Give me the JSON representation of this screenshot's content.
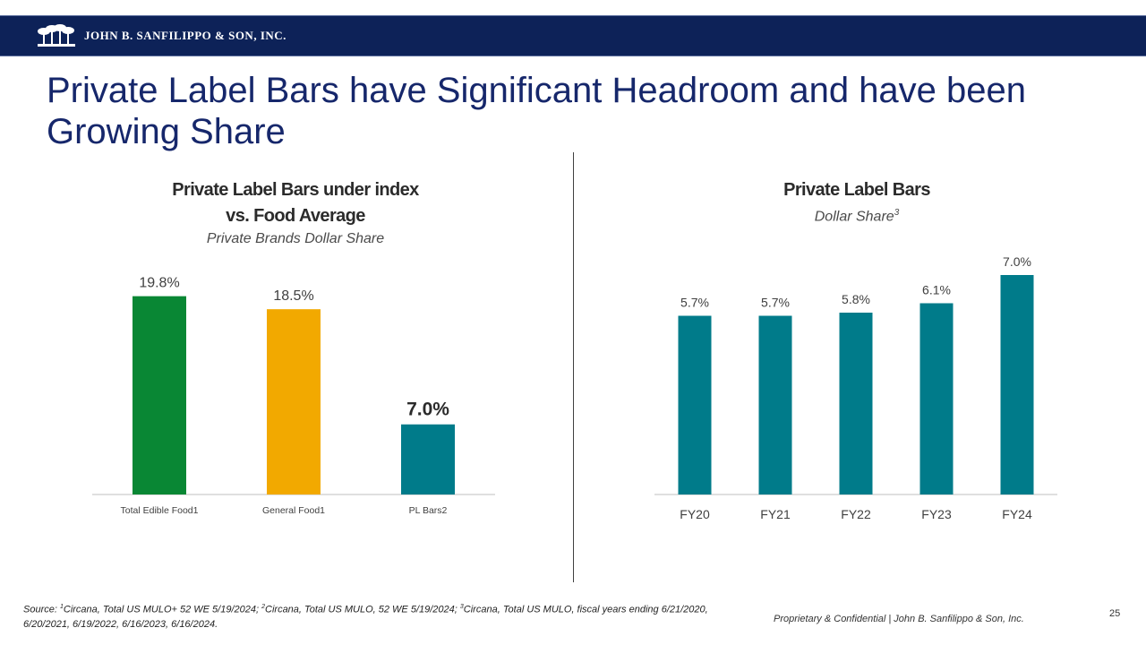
{
  "header": {
    "company": "JOHN B. SANFILIPPO & SON, INC.",
    "logo_icon": "palm-trees-logo-icon"
  },
  "title": "Private Label Bars have Significant Headroom and have been Growing Share",
  "left_chart": {
    "title_line1": "Private Label Bars under index",
    "title_line2": "vs. Food Average",
    "subtitle": "Private Brands Dollar Share"
  },
  "right_chart": {
    "title": "Private Label Bars",
    "subtitle": "Dollar Share",
    "subtitle_note": "3"
  },
  "chart_data": [
    {
      "type": "bar",
      "title": "Private Label Bars under index vs. Food Average",
      "subtitle": "Private Brands Dollar Share",
      "categories": [
        "Total Edible Food1",
        "General Food1",
        "PL Bars2"
      ],
      "values": [
        19.8,
        18.5,
        7.0
      ],
      "labels": [
        "19.8%",
        "18.5%",
        "7.0%"
      ],
      "highlight_index": 2,
      "colors": [
        "#098734",
        "#f2a900",
        "#007b8a"
      ],
      "ylim": [
        0,
        20
      ],
      "xlabel": "",
      "ylabel": "",
      "grid": false,
      "legend": false
    },
    {
      "type": "bar",
      "title": "Private Label Bars",
      "subtitle": "Dollar Share3",
      "categories": [
        "FY20",
        "FY21",
        "FY22",
        "FY23",
        "FY24"
      ],
      "values": [
        5.7,
        5.7,
        5.8,
        6.1,
        7.0
      ],
      "labels": [
        "5.7%",
        "5.7%",
        "5.8%",
        "6.1%",
        "7.0%"
      ],
      "colors": [
        "#007b8a",
        "#007b8a",
        "#007b8a",
        "#007b8a",
        "#007b8a"
      ],
      "ylim": [
        0,
        7.0
      ],
      "xlabel": "",
      "ylabel": "",
      "grid": false,
      "legend": false
    }
  ],
  "footer": {
    "source_prefix": "Source: ",
    "n1": "1",
    "s1": "Circana, Total US MULO+ 52 WE 5/19/2024; ",
    "n2": "2",
    "s2": "Circana, Total US MULO, 52 WE 5/19/2024; ",
    "n3": "3",
    "s3": "Circana, Total US MULO, fiscal years ending 6/21/2020, 6/20/2021, 6/19/2022, 6/16/2023, 6/16/2024.",
    "confidential": "Proprietary & Confidential | John B. Sanfilippo & Son, Inc.",
    "page_number": "25"
  }
}
